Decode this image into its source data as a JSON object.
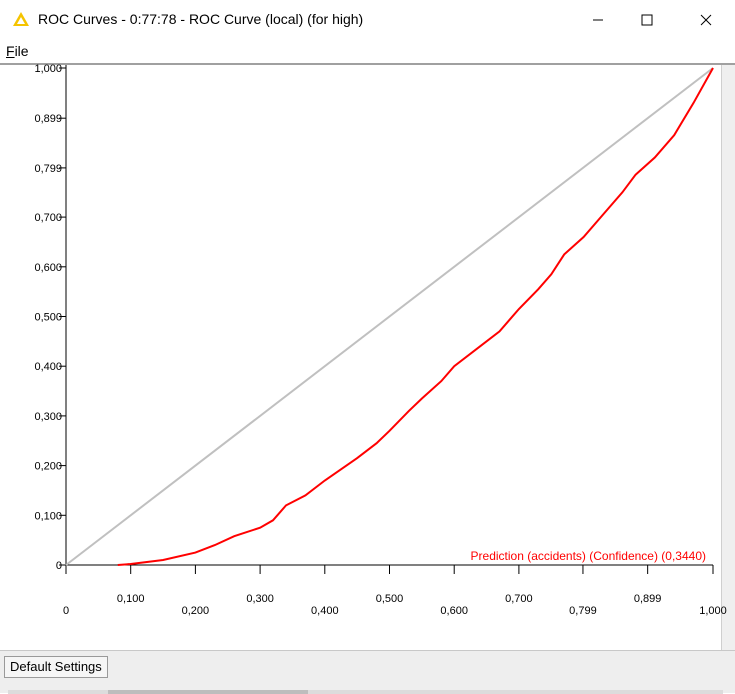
{
  "window": {
    "title": "ROC Curves - 0:77:78 - ROC Curve (local) (for high)",
    "icon": "knime-warning-triangle-icon",
    "minimize_icon": "minimize-icon",
    "maximize_icon": "maximize-icon",
    "close_icon": "close-icon"
  },
  "menu": {
    "file_mnemonic": "F",
    "file_rest": "ile"
  },
  "tabs": [
    {
      "label": "Default Settings"
    }
  ],
  "colors": {
    "roc_curve": "#ff0000",
    "diagonal": "#c0c0c0",
    "accent_icon": "#f5c400"
  },
  "chart_data": {
    "type": "line",
    "title": "",
    "xlabel": "",
    "ylabel": "",
    "xlim": [
      0,
      1
    ],
    "ylim": [
      0,
      1
    ],
    "x_ticks": [
      "0",
      "0,100",
      "0,200",
      "0,300",
      "0,400",
      "0,500",
      "0,600",
      "0,700",
      "0,799",
      "0,899",
      "1,000"
    ],
    "x_tick_values": [
      0,
      0.1,
      0.2,
      0.3,
      0.4,
      0.5,
      0.6,
      0.7,
      0.799,
      0.899,
      1.0
    ],
    "y_ticks": [
      "0",
      "0,100",
      "0,200",
      "0,300",
      "0,400",
      "0,500",
      "0,600",
      "0,700",
      "0,799",
      "0,899",
      "1,000"
    ],
    "y_tick_values": [
      0,
      0.1,
      0.2,
      0.3,
      0.4,
      0.5,
      0.6,
      0.7,
      0.799,
      0.899,
      1.0
    ],
    "legend": "bottom-right",
    "series": [
      {
        "name": "Prediction (accidents) (Confidence) (0,3440)",
        "color": "#ff0000",
        "x": [
          0.08,
          0.1,
          0.15,
          0.2,
          0.23,
          0.26,
          0.3,
          0.32,
          0.34,
          0.37,
          0.4,
          0.45,
          0.48,
          0.5,
          0.53,
          0.55,
          0.58,
          0.6,
          0.64,
          0.67,
          0.7,
          0.73,
          0.75,
          0.77,
          0.8,
          0.83,
          0.86,
          0.88,
          0.91,
          0.94,
          0.97,
          1.0
        ],
        "y": [
          0.0,
          0.002,
          0.01,
          0.025,
          0.04,
          0.058,
          0.075,
          0.09,
          0.12,
          0.14,
          0.17,
          0.215,
          0.245,
          0.27,
          0.31,
          0.335,
          0.37,
          0.4,
          0.44,
          0.47,
          0.515,
          0.555,
          0.585,
          0.625,
          0.66,
          0.705,
          0.75,
          0.785,
          0.82,
          0.865,
          0.93,
          1.0
        ]
      },
      {
        "name": "",
        "color": "#c0c0c0",
        "x": [
          0,
          1
        ],
        "y": [
          0,
          1
        ]
      }
    ]
  }
}
